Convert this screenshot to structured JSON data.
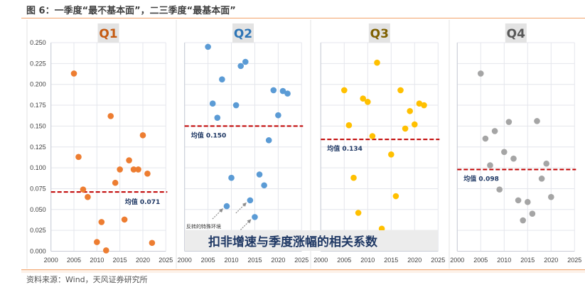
{
  "figure": {
    "title": "图 6：一季度“最不基本面”，二三季度“最基本面”",
    "source": "资料来源：Wind，天风证券研究所",
    "banner": "扣非增速与季度涨幅的相关系数",
    "annotation": "反转的特殊环境"
  },
  "colors": {
    "Q1": "#ed7d31",
    "Q2": "#5b9bd5",
    "Q3": "#ffc000",
    "Q4": "#a5a5a5",
    "Q1_title": "#c55a11",
    "Q2_title": "#2e75b6",
    "Q3_title": "#7f6000",
    "Q4_title": "#595959",
    "mean_line": "#c00000",
    "mean_label": "#1f3864"
  },
  "chart_data": [
    {
      "type": "scatter",
      "title": "Q1",
      "xlabel": "",
      "ylabel": "",
      "xlim": [
        2000,
        2025
      ],
      "ylim": [
        0,
        0.25
      ],
      "xticks": [
        "2000",
        "2005",
        "2010",
        "2015",
        "2020",
        "2025"
      ],
      "yticks": [
        "0.000",
        "0.025",
        "0.050",
        "0.075",
        "0.100",
        "0.125",
        "0.150",
        "0.175",
        "0.200",
        "0.225",
        "0.250"
      ],
      "grid": true,
      "mean": 0.071,
      "mean_label": "均值 0.071",
      "x": [
        2005,
        2006,
        2007,
        2008,
        2010,
        2011,
        2012,
        2013,
        2014,
        2015,
        2016,
        2017,
        2018,
        2019,
        2020,
        2021,
        2022
      ],
      "y": [
        0.213,
        0.113,
        0.074,
        0.065,
        0.011,
        0.035,
        0.001,
        0.162,
        0.082,
        0.098,
        0.038,
        0.109,
        0.098,
        0.098,
        0.139,
        0.093,
        0.01
      ]
    },
    {
      "type": "scatter",
      "title": "Q2",
      "xlabel": "",
      "ylabel": "",
      "xlim": [
        2000,
        2025
      ],
      "ylim": [
        0,
        0.25
      ],
      "xticks": [
        "2000",
        "2005",
        "2010",
        "2015",
        "2020",
        "2025"
      ],
      "grid": true,
      "mean": 0.15,
      "mean_label": "均值 0.150",
      "x": [
        2005,
        2006,
        2007,
        2008,
        2009,
        2010,
        2011,
        2012,
        2013,
        2014,
        2015,
        2016,
        2017,
        2018,
        2019,
        2020,
        2021,
        2022
      ],
      "y": [
        0.245,
        0.177,
        0.16,
        0.206,
        0.054,
        0.088,
        0.175,
        0.222,
        0.227,
        0.061,
        0.041,
        0.092,
        0.079,
        0.133,
        0.193,
        0.163,
        0.192,
        0.189
      ],
      "arrows_to": [
        2009,
        2014,
        2015
      ]
    },
    {
      "type": "scatter",
      "title": "Q3",
      "xlabel": "",
      "ylabel": "",
      "xlim": [
        2000,
        2025
      ],
      "ylim": [
        0,
        0.25
      ],
      "xticks": [
        "2000",
        "2005",
        "2010",
        "2015",
        "2020",
        "2025"
      ],
      "grid": true,
      "mean": 0.134,
      "mean_label": "均值 0.134",
      "x": [
        2005,
        2006,
        2007,
        2008,
        2009,
        2010,
        2011,
        2012,
        2013,
        2015,
        2016,
        2017,
        2018,
        2019,
        2020,
        2021,
        2022
      ],
      "y": [
        0.193,
        0.151,
        0.088,
        0.046,
        0.183,
        0.179,
        0.138,
        0.226,
        0.027,
        0.116,
        0.066,
        0.193,
        0.147,
        0.168,
        0.152,
        0.177,
        0.175
      ]
    },
    {
      "type": "scatter",
      "title": "Q4",
      "xlabel": "",
      "ylabel": "",
      "xlim": [
        2000,
        2025
      ],
      "ylim": [
        0,
        0.25
      ],
      "xticks": [
        "2000",
        "2005",
        "2010",
        "2015",
        "2020",
        "2025"
      ],
      "grid": true,
      "mean": 0.098,
      "mean_label": "均值 0.098",
      "x": [
        2005,
        2006,
        2007,
        2008,
        2009,
        2010,
        2011,
        2012,
        2013,
        2014,
        2015,
        2016,
        2017,
        2018,
        2019,
        2020
      ],
      "y": [
        0.213,
        0.135,
        0.103,
        0.144,
        0.074,
        0.119,
        0.155,
        0.111,
        0.061,
        0.037,
        0.059,
        0.045,
        0.156,
        0.087,
        0.105,
        0.065
      ]
    }
  ]
}
